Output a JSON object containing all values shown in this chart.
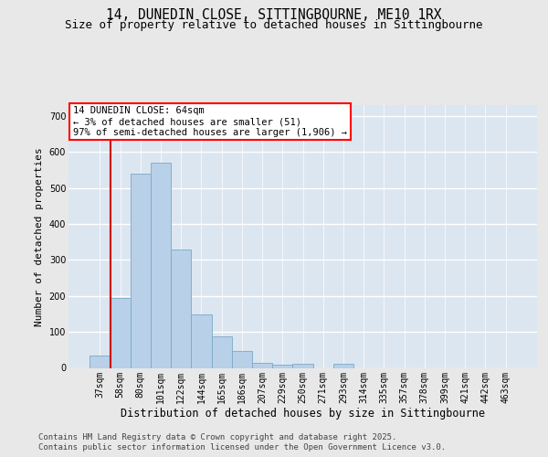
{
  "title_line1": "14, DUNEDIN CLOSE, SITTINGBOURNE, ME10 1RX",
  "title_line2": "Size of property relative to detached houses in Sittingbourne",
  "xlabel": "Distribution of detached houses by size in Sittingbourne",
  "ylabel": "Number of detached properties",
  "categories": [
    "37sqm",
    "58sqm",
    "80sqm",
    "101sqm",
    "122sqm",
    "144sqm",
    "165sqm",
    "186sqm",
    "207sqm",
    "229sqm",
    "250sqm",
    "271sqm",
    "293sqm",
    "314sqm",
    "335sqm",
    "357sqm",
    "378sqm",
    "399sqm",
    "421sqm",
    "442sqm",
    "463sqm"
  ],
  "values": [
    35,
    193,
    540,
    570,
    330,
    148,
    88,
    48,
    15,
    10,
    12,
    0,
    12,
    0,
    0,
    0,
    0,
    0,
    0,
    0,
    0
  ],
  "bar_color": "#b8d0e8",
  "bar_edge_color": "#7aaac8",
  "vline_color": "#cc0000",
  "vline_x": 0.5,
  "annotation_text": "14 DUNEDIN CLOSE: 64sqm\n← 3% of detached houses are smaller (51)\n97% of semi-detached houses are larger (1,906) →",
  "ylim": [
    0,
    730
  ],
  "yticks": [
    0,
    100,
    200,
    300,
    400,
    500,
    600,
    700
  ],
  "plot_bg_color": "#dce6f0",
  "fig_bg_color": "#e8e8e8",
  "grid_color": "#ffffff",
  "footer_line1": "Contains HM Land Registry data © Crown copyright and database right 2025.",
  "footer_line2": "Contains public sector information licensed under the Open Government Licence v3.0.",
  "title_fontsize": 10.5,
  "subtitle_fontsize": 9,
  "xlabel_fontsize": 8.5,
  "ylabel_fontsize": 8,
  "tick_fontsize": 7,
  "footer_fontsize": 6.5,
  "ann_fontsize": 7.5
}
